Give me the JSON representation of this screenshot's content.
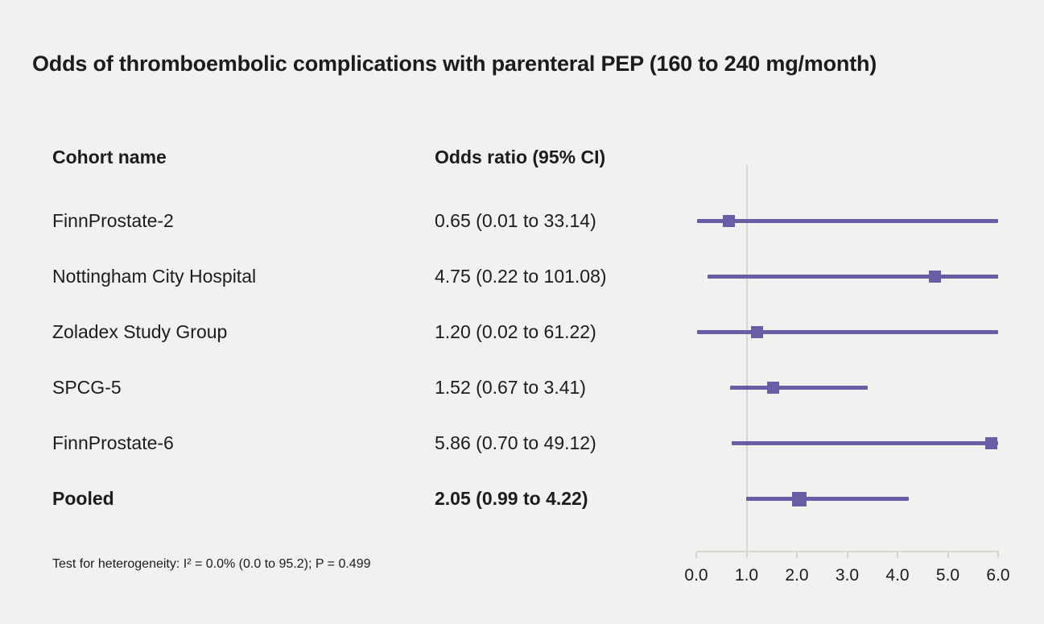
{
  "figure": {
    "title": "Odds of thromboembolic complications with parenteral PEP (160 to 240 mg/month)",
    "column_headers": {
      "cohort": "Cohort name",
      "odds_ratio": "Odds ratio (95% CI)"
    },
    "footnote": "Test for heterogeneity: I² = 0.0% (0.0 to 95.2); P = 0.499"
  },
  "chart_data": {
    "type": "scatter",
    "variant": "forest-plot",
    "title": "Odds of thromboembolic complications with parenteral PEP (160 to 240 mg/month)",
    "xlabel": "",
    "ylabel": "",
    "xlim": [
      0.0,
      6.0
    ],
    "x_ticks": [
      0,
      1,
      2,
      3,
      4,
      5,
      6
    ],
    "x_tick_labels": [
      "0.0",
      "1.0",
      "2.0",
      "3.0",
      "4.0",
      "5.0",
      "6.0"
    ],
    "reference_line_x": 1.0,
    "studies": [
      {
        "name": "FinnProstate-2",
        "or": 0.65,
        "ci_low": 0.01,
        "ci_high": 33.14,
        "label": "0.65 (0.01 to 33.14)",
        "pooled": false
      },
      {
        "name": "Nottingham City Hospital",
        "or": 4.75,
        "ci_low": 0.22,
        "ci_high": 101.08,
        "label": "4.75 (0.22 to 101.08)",
        "pooled": false
      },
      {
        "name": "Zoladex Study Group",
        "or": 1.2,
        "ci_low": 0.02,
        "ci_high": 61.22,
        "label": "1.20 (0.02 to 61.22)",
        "pooled": false
      },
      {
        "name": "SPCG-5",
        "or": 1.52,
        "ci_low": 0.67,
        "ci_high": 3.41,
        "label": "1.52 (0.67 to 3.41)",
        "pooled": false
      },
      {
        "name": "FinnProstate-6",
        "or": 5.86,
        "ci_low": 0.7,
        "ci_high": 49.12,
        "label": "5.86 (0.70 to 49.12)",
        "pooled": false
      },
      {
        "name": "Pooled",
        "or": 2.05,
        "ci_low": 0.99,
        "ci_high": 4.22,
        "label": "2.05 (0.99 to 4.22)",
        "pooled": true
      }
    ],
    "heterogeneity_note": "Test for heterogeneity: I² = 0.0% (0.0 to 95.2); P = 0.499",
    "legend": "none",
    "grid": "reference line at OR = 1.0 only; confidence intervals clipped at x = 6.0"
  },
  "colors": {
    "accent_purple": "#6b5ca6",
    "background": "#f2f1ef",
    "grid_gray": "#d8d6d2",
    "text": "#1c1c1c"
  }
}
